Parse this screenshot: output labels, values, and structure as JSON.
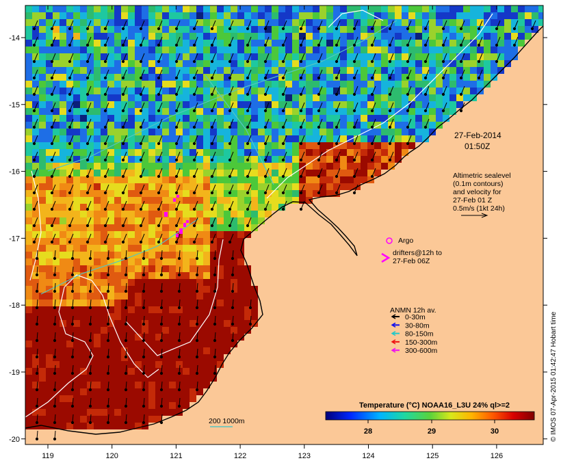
{
  "map": {
    "x_ticks": [
      "119",
      "120",
      "121",
      "122",
      "123",
      "124",
      "125",
      "126"
    ],
    "y_ticks": [
      "-14",
      "-15",
      "-16",
      "-17",
      "-18",
      "-19",
      "-20"
    ],
    "colors": {
      "land": "#fbc897",
      "sst_cold": "#0b2a8c",
      "sst_mid": "#2dbb6e",
      "sst_warm": "#f3c21b",
      "sst_hot": "#9b0a00",
      "contour": "#ffffff",
      "contour_cyan": "#55c6c2"
    }
  },
  "annotations": {
    "date": "27-Feb-2014",
    "time": "01:50Z",
    "sealevel_lines": [
      "Altimetric sealevel",
      "(0.1m contours)",
      "and velocity for",
      "27-Feb 01 Z",
      "0.5m/s (1kt 24h)"
    ],
    "argo_label": "Argo",
    "drifters_lines": [
      "drifters@12h to",
      "27-Feb 06Z"
    ],
    "depth_contour_label": "200 1000m"
  },
  "legend": {
    "title": "ANMN 12h av.",
    "items": [
      {
        "label": "0-30m",
        "color": "#000000"
      },
      {
        "label": "30-80m",
        "color": "#1010ee"
      },
      {
        "label": "80-150m",
        "color": "#20c8c8"
      },
      {
        "label": "150-300m",
        "color": "#ee1010"
      },
      {
        "label": "300-600m",
        "color": "#ee10ee"
      }
    ]
  },
  "colorbar": {
    "title": "Temperature (°C) NOAA16_L3U 24% ql>=2",
    "ticks": [
      "28",
      "29",
      "30"
    ]
  },
  "credit": "© IMOS 07-Apr-2015 01:42:47 Hobart time"
}
